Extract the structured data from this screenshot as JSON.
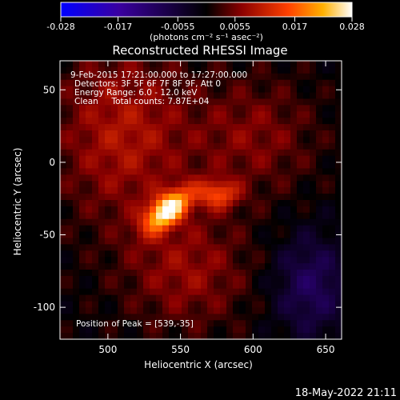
{
  "chart_data": {
    "type": "heatmap",
    "title": "Reconstructed RHESSI Image",
    "xlabel": "Heliocentric X (arcsec)",
    "ylabel": "Heliocentric Y (arcsec)",
    "xlim": [
      467,
      661
    ],
    "ylim": [
      -122,
      70
    ],
    "x_ticks": [
      500,
      550,
      600,
      650
    ],
    "y_ticks": [
      50,
      0,
      -50,
      -100
    ],
    "colorbar": {
      "min": -0.028,
      "max": 0.028,
      "ticks": [
        "-0.028",
        "-0.017",
        "-0.0055",
        "0.0055",
        "0.017",
        "0.028"
      ],
      "unit_label": "(photons cm⁻² s⁻¹ asec⁻²)",
      "colors": [
        "#0000ff",
        "#3a00a0",
        "#000000",
        "#8a0000",
        "#ff4000",
        "#ffb000",
        "#ffffff"
      ]
    },
    "annotations": [
      "9-Feb-2015 17:21:00.000 to 17:27:00.000",
      "Detectors: 3F 5F 6F 7F 8F 9F, Att 0",
      "Energy Range: 6.0 - 12.0 keV",
      "Clean     Total counts: 7.87E+04"
    ],
    "peak_label": "Position of Peak = [539,-35]",
    "peak": {
      "x": 539,
      "y": -35,
      "value": 0.028
    },
    "sources": [
      {
        "x": 541,
        "y": -33,
        "sx": 13,
        "sy": 7,
        "angle": 40,
        "amp": 0.026
      },
      {
        "x": 576,
        "y": -22,
        "sx": 10,
        "sy": 7,
        "angle": 0,
        "amp": 0.013
      },
      {
        "x": 510,
        "y": 20,
        "sx": 32,
        "sy": 42,
        "angle": 0,
        "amp": 0.009
      },
      {
        "x": 555,
        "y": -75,
        "sx": 30,
        "sy": 28,
        "angle": 0,
        "amp": 0.007
      },
      {
        "x": 600,
        "y": 18,
        "sx": 30,
        "sy": 28,
        "angle": 0,
        "amp": 0.006
      }
    ],
    "negative_region": {
      "x": 640,
      "y": -85,
      "sx": 18,
      "sy": 25,
      "amp": -0.009
    }
  },
  "timestamp": "18-May-2022 21:11"
}
